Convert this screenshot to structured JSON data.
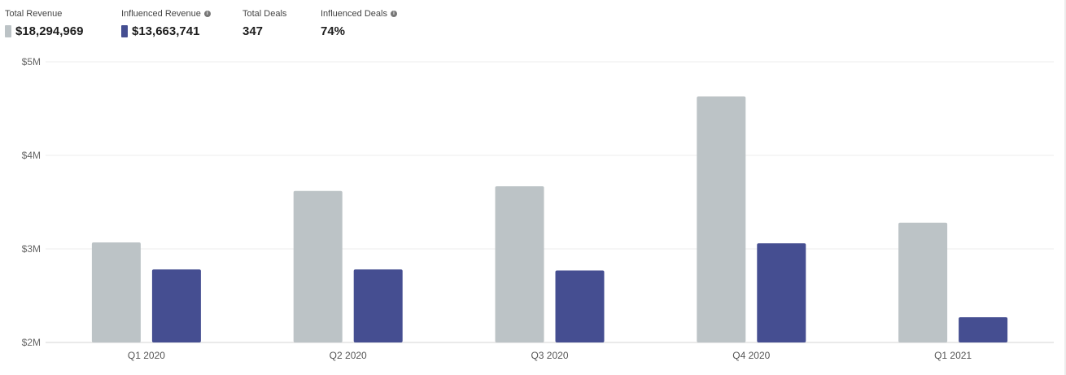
{
  "kpis": [
    {
      "label": "Total Revenue",
      "value": "$18,294,969",
      "color": "#bcc3c6",
      "info": false
    },
    {
      "label": "Influenced Revenue",
      "value": "$13,663,741",
      "color": "#454e91",
      "info": true
    },
    {
      "label": "Total Deals",
      "value": "347",
      "info": false
    },
    {
      "label": "Influenced Deals",
      "value": "74%",
      "info": true
    }
  ],
  "chart_data": {
    "type": "bar",
    "categories": [
      "Q1 2020",
      "Q2 2020",
      "Q3 2020",
      "Q4 2020",
      "Q1 2021"
    ],
    "series": [
      {
        "name": "Total Revenue",
        "color": "#bcc3c6",
        "values": [
          3070000,
          3620000,
          3670000,
          4630000,
          3280000
        ]
      },
      {
        "name": "Influenced Revenue",
        "color": "#454e91",
        "values": [
          2780000,
          2780000,
          2770000,
          3060000,
          2270000
        ]
      }
    ],
    "ylim": [
      2000000,
      5000000
    ],
    "yticks": [
      {
        "value": 2000000,
        "label": "$2M"
      },
      {
        "value": 3000000,
        "label": "$3M"
      },
      {
        "value": 4000000,
        "label": "$4M"
      },
      {
        "value": 5000000,
        "label": "$5M"
      }
    ],
    "grid": true,
    "title": "",
    "xlabel": "",
    "ylabel": ""
  }
}
